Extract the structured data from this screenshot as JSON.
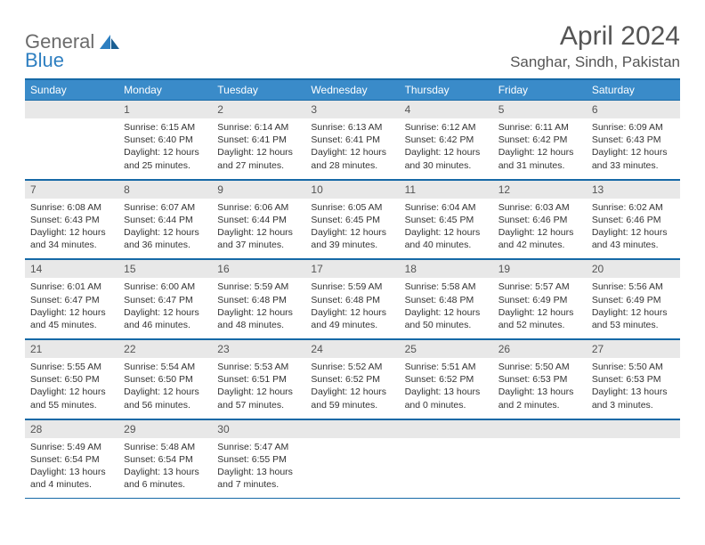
{
  "logo": {
    "general": "General",
    "blue": "Blue"
  },
  "title": "April 2024",
  "location": "Sanghar, Sindh, Pakistan",
  "colors": {
    "header_band": "#3a8bc9",
    "rule": "#1669a6",
    "daynum_band": "#e8e8e8",
    "text": "#333333",
    "title_text": "#555555",
    "logo_gray": "#6b6b6b",
    "logo_blue": "#2e7fc1",
    "background": "#ffffff"
  },
  "weekdays": [
    "Sunday",
    "Monday",
    "Tuesday",
    "Wednesday",
    "Thursday",
    "Friday",
    "Saturday"
  ],
  "weeks": [
    [
      {
        "n": "",
        "sr": "",
        "ss": "",
        "dl": ""
      },
      {
        "n": "1",
        "sr": "Sunrise: 6:15 AM",
        "ss": "Sunset: 6:40 PM",
        "dl": "Daylight: 12 hours and 25 minutes."
      },
      {
        "n": "2",
        "sr": "Sunrise: 6:14 AM",
        "ss": "Sunset: 6:41 PM",
        "dl": "Daylight: 12 hours and 27 minutes."
      },
      {
        "n": "3",
        "sr": "Sunrise: 6:13 AM",
        "ss": "Sunset: 6:41 PM",
        "dl": "Daylight: 12 hours and 28 minutes."
      },
      {
        "n": "4",
        "sr": "Sunrise: 6:12 AM",
        "ss": "Sunset: 6:42 PM",
        "dl": "Daylight: 12 hours and 30 minutes."
      },
      {
        "n": "5",
        "sr": "Sunrise: 6:11 AM",
        "ss": "Sunset: 6:42 PM",
        "dl": "Daylight: 12 hours and 31 minutes."
      },
      {
        "n": "6",
        "sr": "Sunrise: 6:09 AM",
        "ss": "Sunset: 6:43 PM",
        "dl": "Daylight: 12 hours and 33 minutes."
      }
    ],
    [
      {
        "n": "7",
        "sr": "Sunrise: 6:08 AM",
        "ss": "Sunset: 6:43 PM",
        "dl": "Daylight: 12 hours and 34 minutes."
      },
      {
        "n": "8",
        "sr": "Sunrise: 6:07 AM",
        "ss": "Sunset: 6:44 PM",
        "dl": "Daylight: 12 hours and 36 minutes."
      },
      {
        "n": "9",
        "sr": "Sunrise: 6:06 AM",
        "ss": "Sunset: 6:44 PM",
        "dl": "Daylight: 12 hours and 37 minutes."
      },
      {
        "n": "10",
        "sr": "Sunrise: 6:05 AM",
        "ss": "Sunset: 6:45 PM",
        "dl": "Daylight: 12 hours and 39 minutes."
      },
      {
        "n": "11",
        "sr": "Sunrise: 6:04 AM",
        "ss": "Sunset: 6:45 PM",
        "dl": "Daylight: 12 hours and 40 minutes."
      },
      {
        "n": "12",
        "sr": "Sunrise: 6:03 AM",
        "ss": "Sunset: 6:46 PM",
        "dl": "Daylight: 12 hours and 42 minutes."
      },
      {
        "n": "13",
        "sr": "Sunrise: 6:02 AM",
        "ss": "Sunset: 6:46 PM",
        "dl": "Daylight: 12 hours and 43 minutes."
      }
    ],
    [
      {
        "n": "14",
        "sr": "Sunrise: 6:01 AM",
        "ss": "Sunset: 6:47 PM",
        "dl": "Daylight: 12 hours and 45 minutes."
      },
      {
        "n": "15",
        "sr": "Sunrise: 6:00 AM",
        "ss": "Sunset: 6:47 PM",
        "dl": "Daylight: 12 hours and 46 minutes."
      },
      {
        "n": "16",
        "sr": "Sunrise: 5:59 AM",
        "ss": "Sunset: 6:48 PM",
        "dl": "Daylight: 12 hours and 48 minutes."
      },
      {
        "n": "17",
        "sr": "Sunrise: 5:59 AM",
        "ss": "Sunset: 6:48 PM",
        "dl": "Daylight: 12 hours and 49 minutes."
      },
      {
        "n": "18",
        "sr": "Sunrise: 5:58 AM",
        "ss": "Sunset: 6:48 PM",
        "dl": "Daylight: 12 hours and 50 minutes."
      },
      {
        "n": "19",
        "sr": "Sunrise: 5:57 AM",
        "ss": "Sunset: 6:49 PM",
        "dl": "Daylight: 12 hours and 52 minutes."
      },
      {
        "n": "20",
        "sr": "Sunrise: 5:56 AM",
        "ss": "Sunset: 6:49 PM",
        "dl": "Daylight: 12 hours and 53 minutes."
      }
    ],
    [
      {
        "n": "21",
        "sr": "Sunrise: 5:55 AM",
        "ss": "Sunset: 6:50 PM",
        "dl": "Daylight: 12 hours and 55 minutes."
      },
      {
        "n": "22",
        "sr": "Sunrise: 5:54 AM",
        "ss": "Sunset: 6:50 PM",
        "dl": "Daylight: 12 hours and 56 minutes."
      },
      {
        "n": "23",
        "sr": "Sunrise: 5:53 AM",
        "ss": "Sunset: 6:51 PM",
        "dl": "Daylight: 12 hours and 57 minutes."
      },
      {
        "n": "24",
        "sr": "Sunrise: 5:52 AM",
        "ss": "Sunset: 6:52 PM",
        "dl": "Daylight: 12 hours and 59 minutes."
      },
      {
        "n": "25",
        "sr": "Sunrise: 5:51 AM",
        "ss": "Sunset: 6:52 PM",
        "dl": "Daylight: 13 hours and 0 minutes."
      },
      {
        "n": "26",
        "sr": "Sunrise: 5:50 AM",
        "ss": "Sunset: 6:53 PM",
        "dl": "Daylight: 13 hours and 2 minutes."
      },
      {
        "n": "27",
        "sr": "Sunrise: 5:50 AM",
        "ss": "Sunset: 6:53 PM",
        "dl": "Daylight: 13 hours and 3 minutes."
      }
    ],
    [
      {
        "n": "28",
        "sr": "Sunrise: 5:49 AM",
        "ss": "Sunset: 6:54 PM",
        "dl": "Daylight: 13 hours and 4 minutes."
      },
      {
        "n": "29",
        "sr": "Sunrise: 5:48 AM",
        "ss": "Sunset: 6:54 PM",
        "dl": "Daylight: 13 hours and 6 minutes."
      },
      {
        "n": "30",
        "sr": "Sunrise: 5:47 AM",
        "ss": "Sunset: 6:55 PM",
        "dl": "Daylight: 13 hours and 7 minutes."
      },
      {
        "n": "",
        "sr": "",
        "ss": "",
        "dl": ""
      },
      {
        "n": "",
        "sr": "",
        "ss": "",
        "dl": ""
      },
      {
        "n": "",
        "sr": "",
        "ss": "",
        "dl": ""
      },
      {
        "n": "",
        "sr": "",
        "ss": "",
        "dl": ""
      }
    ]
  ]
}
